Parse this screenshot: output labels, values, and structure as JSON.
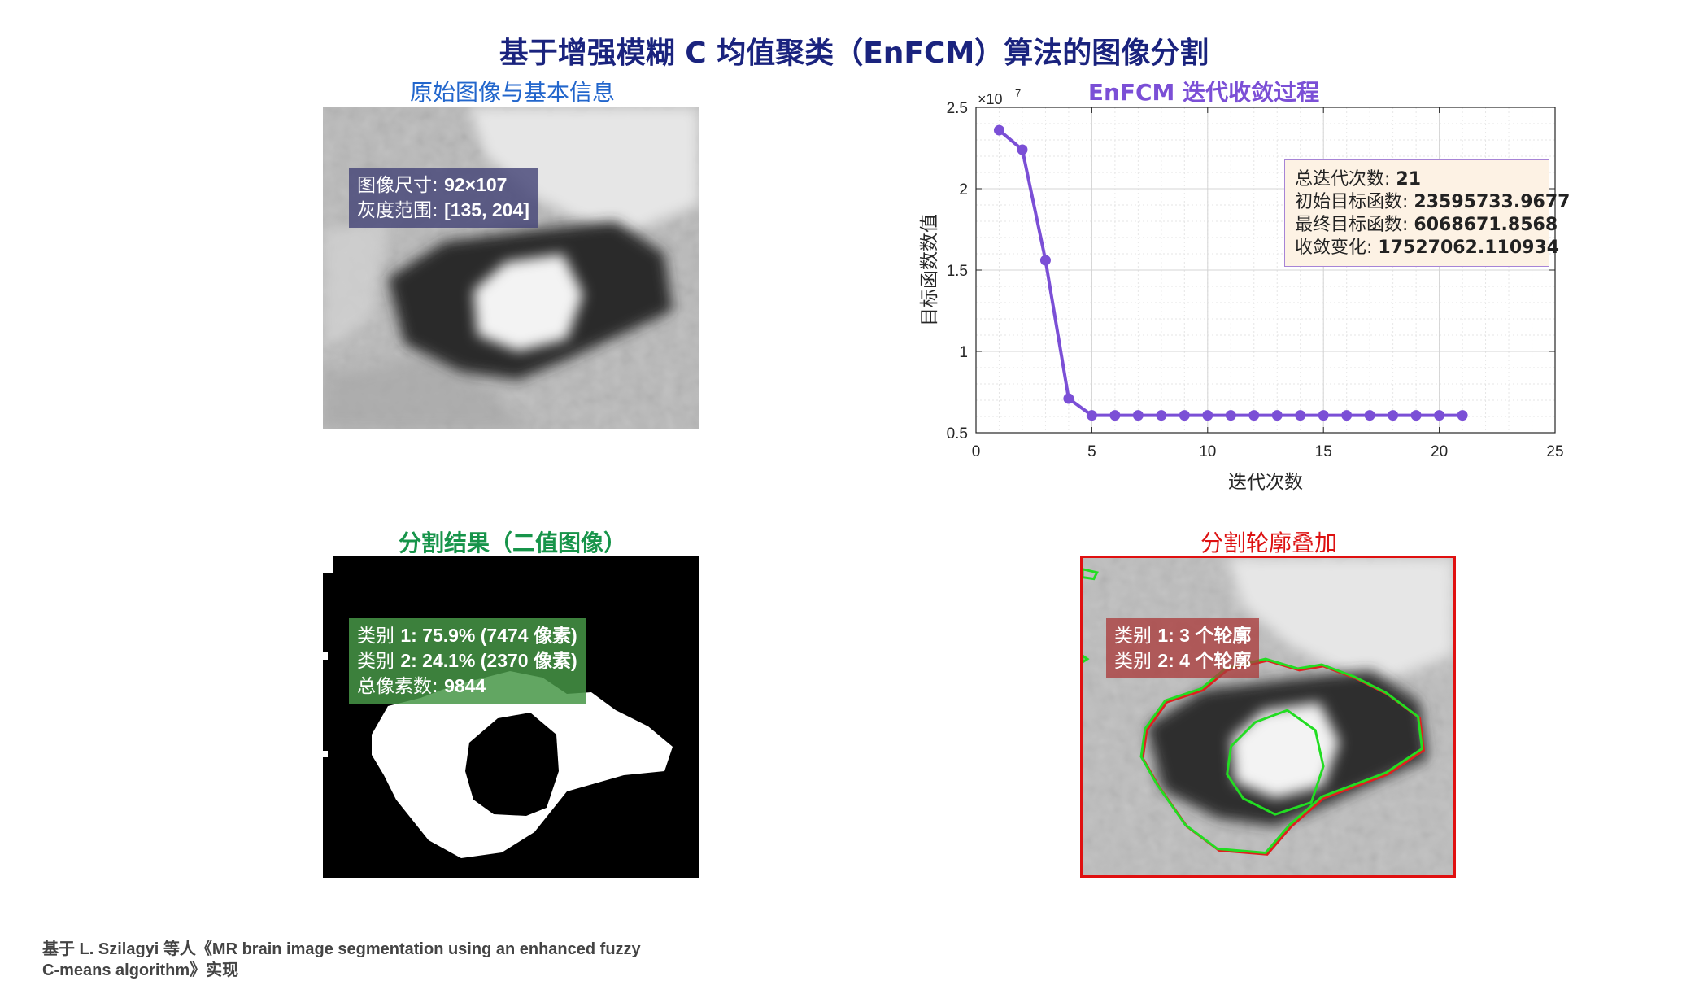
{
  "figure": {
    "title": "基于增强模糊 C 均值聚类（EnFCM）算法的图像分割",
    "footnote_line1": "基于 L. Szilagyi 等人《MR brain image segmentation using an enhanced fuzzy",
    "footnote_line2": "C-means algorithm》实现"
  },
  "original": {
    "title": "原始图像与基本信息",
    "size_label": "图像尺寸: ",
    "size_value": "92×107",
    "range_label": "灰度范围: ",
    "range_value": "[135, 204]"
  },
  "segmentation": {
    "title": "分割结果（二值图像）",
    "class1_label": "类别 ",
    "class1_value": "1: 75.9% (7474 像素)",
    "class2_label": "类别 ",
    "class2_value": "2: 24.1% (2370 像素)",
    "total_label": "总像素数: ",
    "total_value": "9844"
  },
  "overlay": {
    "title": "分割轮廓叠加",
    "class1_label": "类别 ",
    "class1_value": "1: 3 个轮廓",
    "class2_label": "类别 ",
    "class2_value": "2: 4 个轮廓"
  },
  "chart_data": {
    "type": "line",
    "title": "EnFCM 迭代收敛过程",
    "xlabel": "迭代次数",
    "ylabel": "目标函数数值",
    "y_exponent_label": "×10",
    "y_exponent": "7",
    "xlim": [
      0,
      25
    ],
    "ylim": [
      0.5,
      2.5
    ],
    "xticks": [
      0,
      5,
      10,
      15,
      20,
      25
    ],
    "yticks": [
      0.5,
      1,
      1.5,
      2,
      2.5
    ],
    "grid": true,
    "minor_grid": true,
    "line_color": "#7b4fd6",
    "x": [
      1,
      2,
      3,
      4,
      5,
      6,
      7,
      8,
      9,
      10,
      11,
      12,
      13,
      14,
      15,
      16,
      17,
      18,
      19,
      20,
      21
    ],
    "y": [
      2.3596,
      2.24,
      1.56,
      0.71,
      0.607,
      0.607,
      0.607,
      0.607,
      0.607,
      0.607,
      0.607,
      0.607,
      0.607,
      0.607,
      0.607,
      0.607,
      0.607,
      0.607,
      0.607,
      0.607,
      0.6069
    ],
    "stats": {
      "iter_label": "总迭代次数: ",
      "iter_value": "21",
      "init_label": "初始目标函数: ",
      "init_value": "23595733.9677",
      "final_label": "最终目标函数: ",
      "final_value": "6068671.8568",
      "change_label": "收敛变化: ",
      "change_value": "17527062.110934"
    }
  }
}
